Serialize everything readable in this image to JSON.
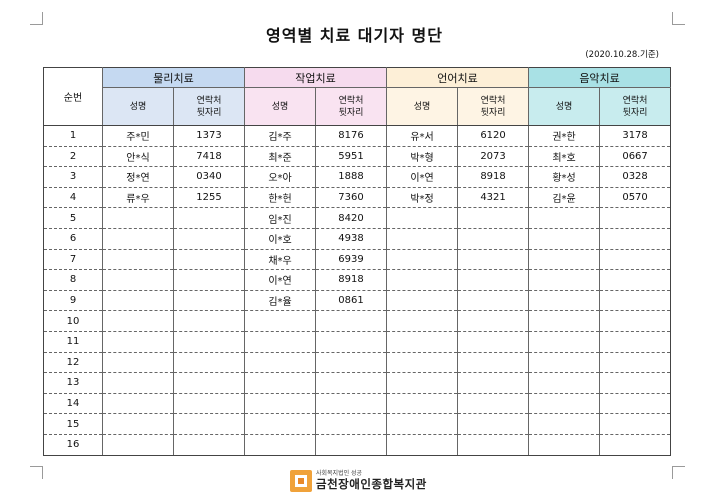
{
  "title": "영역별 치료 대기자 명단",
  "date": "(2020.10.28.기준)",
  "table": {
    "seq_header": "순번",
    "categories": [
      {
        "label": "물리치료",
        "col1": "성명",
        "col2": "연락처\n뒷자리",
        "color": "#c5d9f1"
      },
      {
        "label": "작업치료",
        "col1": "성명",
        "col2": "연락처\n뒷자리",
        "color": "#f6dbee"
      },
      {
        "label": "언어치료",
        "col1": "성명",
        "col2": "연락처\n뒷자리",
        "color": "#fdefd7"
      },
      {
        "label": "음악치료",
        "col1": "성명",
        "col2": "연락처\n뒷자리",
        "color": "#a9e1e5"
      }
    ],
    "rows": [
      {
        "seq": "1",
        "cells": [
          "주*민",
          "1373",
          "김*주",
          "8176",
          "유*서",
          "6120",
          "권*한",
          "3178"
        ]
      },
      {
        "seq": "2",
        "cells": [
          "안*식",
          "7418",
          "최*준",
          "5951",
          "박*형",
          "2073",
          "최*호",
          "0667"
        ]
      },
      {
        "seq": "3",
        "cells": [
          "정*연",
          "0340",
          "오*아",
          "1888",
          "이*연",
          "8918",
          "황*성",
          "0328"
        ]
      },
      {
        "seq": "4",
        "cells": [
          "류*우",
          "1255",
          "한*헌",
          "7360",
          "박*정",
          "4321",
          "김*윤",
          "0570"
        ]
      },
      {
        "seq": "5",
        "cells": [
          "",
          "",
          "임*진",
          "8420",
          "",
          "",
          "",
          ""
        ]
      },
      {
        "seq": "6",
        "cells": [
          "",
          "",
          "이*호",
          "4938",
          "",
          "",
          "",
          ""
        ]
      },
      {
        "seq": "7",
        "cells": [
          "",
          "",
          "채*우",
          "6939",
          "",
          "",
          "",
          ""
        ]
      },
      {
        "seq": "8",
        "cells": [
          "",
          "",
          "이*연",
          "8918",
          "",
          "",
          "",
          ""
        ]
      },
      {
        "seq": "9",
        "cells": [
          "",
          "",
          "김*율",
          "0861",
          "",
          "",
          "",
          ""
        ]
      },
      {
        "seq": "10",
        "cells": [
          "",
          "",
          "",
          "",
          "",
          "",
          "",
          ""
        ]
      },
      {
        "seq": "11",
        "cells": [
          "",
          "",
          "",
          "",
          "",
          "",
          "",
          ""
        ]
      },
      {
        "seq": "12",
        "cells": [
          "",
          "",
          "",
          "",
          "",
          "",
          "",
          ""
        ]
      },
      {
        "seq": "13",
        "cells": [
          "",
          "",
          "",
          "",
          "",
          "",
          "",
          ""
        ]
      },
      {
        "seq": "14",
        "cells": [
          "",
          "",
          "",
          "",
          "",
          "",
          "",
          ""
        ]
      },
      {
        "seq": "15",
        "cells": [
          "",
          "",
          "",
          "",
          "",
          "",
          "",
          ""
        ]
      },
      {
        "seq": "16",
        "cells": [
          "",
          "",
          "",
          "",
          "",
          "",
          "",
          ""
        ]
      }
    ]
  },
  "footer": {
    "org_small": "사회복지법인 성공",
    "org_name": "금천장애인종합복지관",
    "logo_icon": "org-logo"
  }
}
